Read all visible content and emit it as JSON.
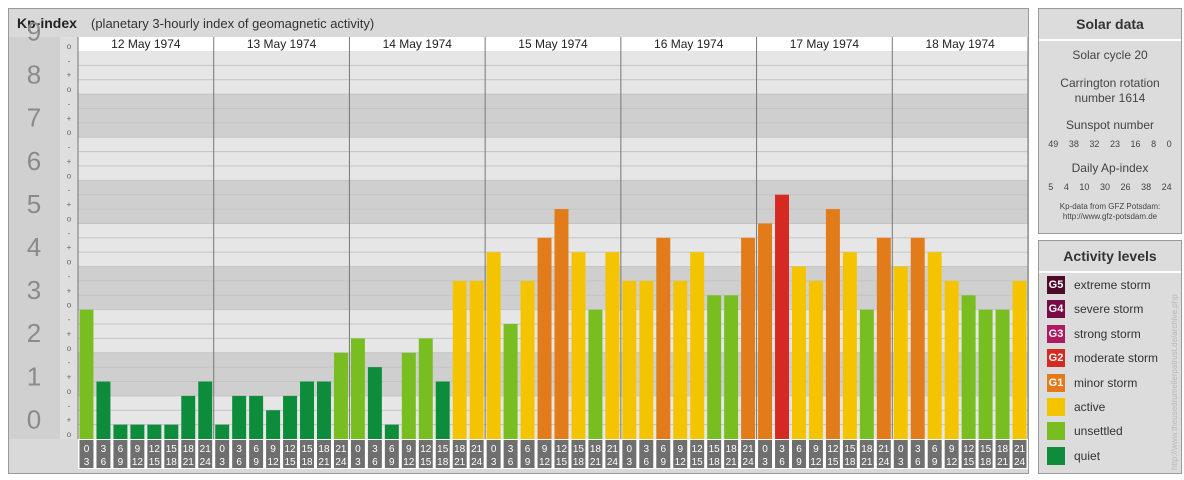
{
  "header": {
    "title": "Kp-index",
    "subtitle": "(planetary 3-hourly index of geomagnetic activity)"
  },
  "chart_data": {
    "type": "bar",
    "title": "Kp-index",
    "subtitle": "(planetary 3-hourly index of geomagnetic activity)",
    "ylim": [
      0,
      9
    ],
    "y_ticks": [
      "0",
      "1",
      "2",
      "3",
      "4",
      "5",
      "6",
      "7",
      "8",
      "9"
    ],
    "minor_tick_marks": [
      "o",
      "+",
      "-"
    ],
    "days": [
      "12 May 1974",
      "13 May 1974",
      "14 May 1974",
      "15 May 1974",
      "16 May 1974",
      "17 May 1974",
      "18 May 1974"
    ],
    "interval_start_labels": [
      "0",
      "3",
      "6",
      "9",
      "12",
      "15",
      "18",
      "21"
    ],
    "interval_end_labels": [
      "3",
      "6",
      "9",
      "12",
      "15",
      "18",
      "21",
      "24"
    ],
    "values": [
      3.0,
      1.333,
      0.333,
      0.333,
      0.333,
      0.333,
      1.0,
      1.333,
      0.333,
      1.0,
      1.0,
      0.667,
      1.0,
      1.333,
      1.333,
      2.0,
      2.333,
      1.667,
      0.333,
      2.0,
      2.333,
      1.333,
      3.667,
      3.667,
      4.333,
      2.667,
      3.667,
      4.667,
      5.333,
      4.333,
      3.0,
      4.333,
      3.667,
      3.667,
      4.667,
      3.667,
      4.333,
      3.333,
      3.333,
      4.667,
      5.0,
      5.667,
      4.0,
      3.667,
      5.333,
      4.333,
      3.0,
      4.667,
      4.0,
      4.667,
      4.333,
      3.667,
      3.333,
      3.0,
      3.0,
      3.667
    ],
    "grid": true
  },
  "solar_data": {
    "title": "Solar data",
    "solar_cycle": "Solar cycle 20",
    "carrington_line1": "Carrington rotation",
    "carrington_line2": "number 1614",
    "sunspot_title": "Sunspot number",
    "sunspot_numbers": [
      "49",
      "38",
      "32",
      "23",
      "16",
      "8",
      "0"
    ],
    "ap_title": "Daily Ap-index",
    "ap_values": [
      "5",
      "4",
      "10",
      "30",
      "26",
      "38",
      "24"
    ],
    "source_line1": "Kp-data from GFZ Potsdam:",
    "source_line2": "http://www.gfz-potsdam.de"
  },
  "activity_levels": {
    "title": "Activity levels",
    "levels": [
      {
        "code": "G5",
        "label": "extreme storm",
        "color": "#4d0a2a"
      },
      {
        "code": "G4",
        "label": "severe storm",
        "color": "#7a0a45"
      },
      {
        "code": "G3",
        "label": "strong storm",
        "color": "#b0185f"
      },
      {
        "code": "G2",
        "label": "moderate storm",
        "color": "#d42a22"
      },
      {
        "code": "G1",
        "label": "minor storm",
        "color": "#e27b1a"
      },
      {
        "code": "",
        "label": "active",
        "color": "#f5c400"
      },
      {
        "code": "",
        "label": "unsettled",
        "color": "#78be20"
      },
      {
        "code": "",
        "label": "quiet",
        "color": "#0d8c3c"
      }
    ]
  },
  "credit": "http://www.theusedrumellerpatrust.de/archive.php"
}
